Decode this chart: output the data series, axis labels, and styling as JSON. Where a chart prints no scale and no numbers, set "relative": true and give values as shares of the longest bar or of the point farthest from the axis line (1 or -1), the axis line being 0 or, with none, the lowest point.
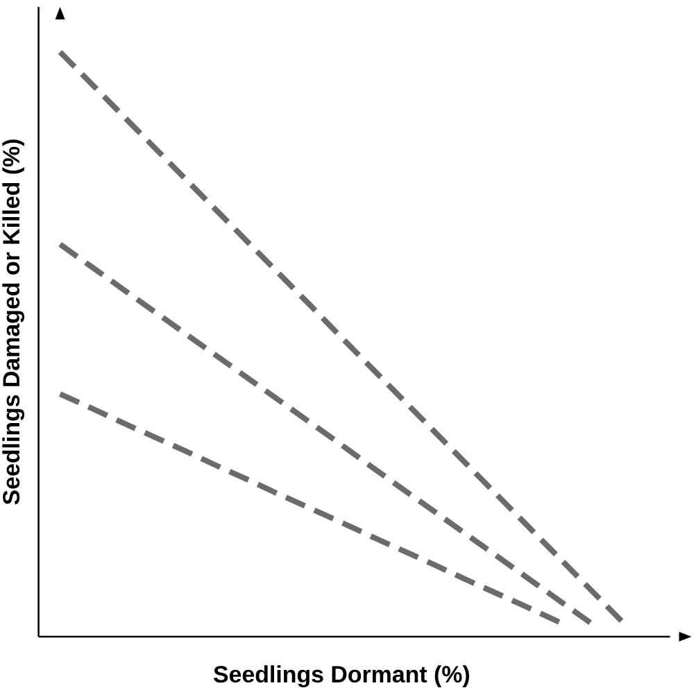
{
  "chart_data": {
    "type": "line",
    "relative": true,
    "xlabel": "Seedlings Dormant (%)",
    "ylabel": "Seedlings Damaged or Killed (%)",
    "line_style": "dashed",
    "categories": [
      null,
      null,
      null,
      null,
      null,
      null,
      null,
      null,
      null,
      null,
      null,
      null,
      null,
      null,
      null,
      null,
      null,
      null,
      null
    ],
    "series": [
      {
        "color": "#6b6b6b",
        "values": [
          1.0,
          0.946,
          0.892,
          0.838,
          0.784,
          0.73,
          0.676,
          0.622,
          0.568,
          0.513,
          0.459,
          0.405,
          0.351,
          0.297,
          0.243,
          0.189,
          0.135,
          0.081,
          0.027
        ]
      },
      {
        "color": "#6b6b6b",
        "values": [
          0.671,
          0.633,
          0.595,
          0.557,
          0.519,
          0.481,
          0.443,
          0.405,
          0.367,
          0.329,
          0.29,
          0.252,
          0.214,
          0.176,
          0.138,
          0.1,
          0.062,
          0.024,
          null
        ]
      },
      {
        "color": "#6b6b6b",
        "values": [
          0.415,
          0.391,
          0.366,
          0.342,
          0.318,
          0.293,
          0.269,
          0.244,
          0.22,
          0.196,
          0.171,
          0.147,
          0.123,
          0.098,
          0.074,
          0.05,
          0.025,
          null,
          null
        ]
      }
    ]
  }
}
